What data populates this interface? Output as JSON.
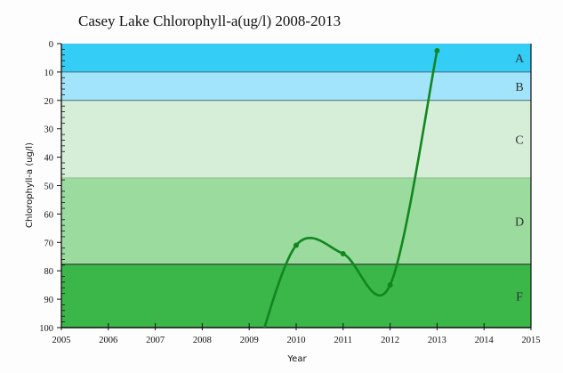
{
  "chart_data": {
    "type": "line",
    "title": "Casey Lake Chlorophyll-a(ug/l) 2008-2013",
    "xlabel": "Year",
    "ylabel": "Chlorophyll-a (ug/l)",
    "xlim": [
      2005,
      2015
    ],
    "ylim": [
      0,
      100
    ],
    "y_inverted": true,
    "x_ticks": [
      "2005",
      "2006",
      "2007",
      "2008",
      "2009",
      "2010",
      "2011",
      "2012",
      "2013",
      "2014",
      "2015"
    ],
    "y_ticks": [
      "0",
      "10",
      "20",
      "30",
      "40",
      "50",
      "60",
      "70",
      "80",
      "90",
      "100"
    ],
    "grid": false,
    "legend": "none",
    "series": [
      {
        "name": "Chlorophyll-a",
        "color": "#12861f",
        "x": [
          2010,
          2011,
          2012,
          2013
        ],
        "values": [
          71,
          74,
          85,
          2.5
        ]
      }
    ],
    "bands": [
      {
        "label": "A",
        "from": 0,
        "to": 10,
        "color": "#33cdf6"
      },
      {
        "label": "B",
        "from": 10,
        "to": 20,
        "color": "#a2e4fa"
      },
      {
        "label": "C",
        "from": 20,
        "to": 47.3,
        "color": "#d6eed8"
      },
      {
        "label": "D",
        "from": 47.3,
        "to": 77.7,
        "color": "#9bdb9e"
      },
      {
        "label": "F",
        "from": 77.7,
        "to": 100,
        "color": "#3bb649"
      }
    ]
  }
}
